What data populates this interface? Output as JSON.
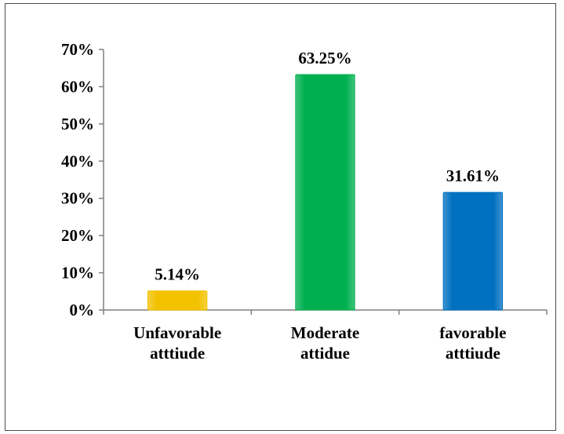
{
  "chart_data": {
    "type": "bar",
    "categories": [
      [
        "Unfavorable",
        "atttiude"
      ],
      [
        "Moderate",
        "attidue"
      ],
      [
        "favorable",
        "atttiude"
      ]
    ],
    "values": [
      5.14,
      63.25,
      31.61
    ],
    "data_labels": [
      "5.14%",
      "63.25%",
      "31.61%"
    ],
    "colors": [
      "#f2c200",
      "#00b050",
      "#0070c0"
    ],
    "ylim": [
      0,
      70
    ],
    "yticks": [
      "0%",
      "10%",
      "20%",
      "30%",
      "40%",
      "50%",
      "60%",
      "70%"
    ],
    "ytick_values": [
      0,
      10,
      20,
      30,
      40,
      50,
      60,
      70
    ],
    "grid": false,
    "title": "",
    "xlabel": "",
    "ylabel": ""
  }
}
